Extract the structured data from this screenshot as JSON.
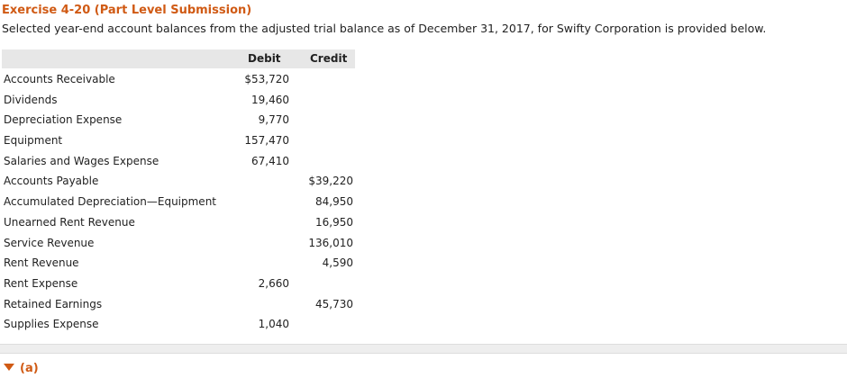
{
  "exercise": {
    "title": "Exercise 4-20 (Part Level Submission)",
    "intro": "Selected year-end account balances from the adjusted trial balance as of December 31, 2017, for Swifty Corporation is provided below."
  },
  "table": {
    "headers": {
      "debit": "Debit",
      "credit": "Credit"
    },
    "rows": [
      {
        "account": "Accounts Receivable",
        "debit": "$53,720",
        "credit": ""
      },
      {
        "account": "Dividends",
        "debit": "19,460",
        "credit": ""
      },
      {
        "account": "Depreciation Expense",
        "debit": "9,770",
        "credit": ""
      },
      {
        "account": "Equipment",
        "debit": "157,470",
        "credit": ""
      },
      {
        "account": "Salaries and Wages Expense",
        "debit": "67,410",
        "credit": ""
      },
      {
        "account": "Accounts Payable",
        "debit": "",
        "credit": "$39,220"
      },
      {
        "account": "Accumulated Depreciation—Equipment",
        "debit": "",
        "credit": "84,950"
      },
      {
        "account": "Unearned Rent Revenue",
        "debit": "",
        "credit": "16,950"
      },
      {
        "account": "Service Revenue",
        "debit": "",
        "credit": "136,010"
      },
      {
        "account": "Rent Revenue",
        "debit": "",
        "credit": "4,590"
      },
      {
        "account": "Rent Expense",
        "debit": "2,660",
        "credit": ""
      },
      {
        "account": "Retained Earnings",
        "debit": "",
        "credit": "45,730"
      },
      {
        "account": "Supplies Expense",
        "debit": "1,040",
        "credit": ""
      }
    ]
  },
  "section": {
    "label": "(a)",
    "icon": "caret-down-icon",
    "accent": "#d05a14"
  }
}
